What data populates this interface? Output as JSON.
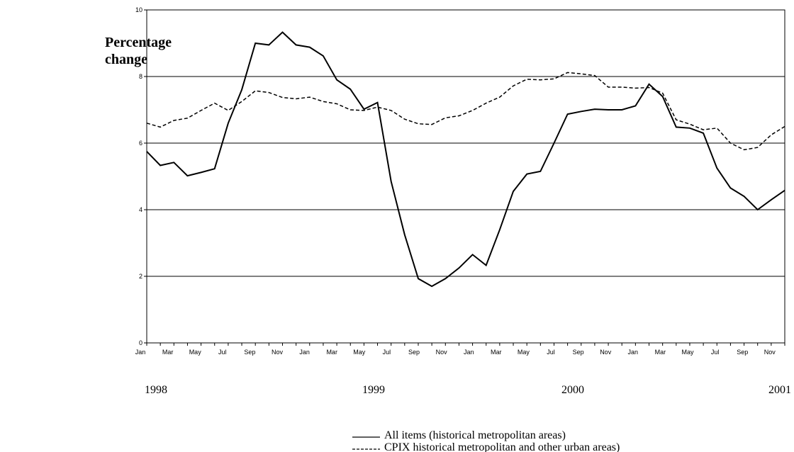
{
  "chart_data": {
    "type": "line",
    "y_label": "Percentage change",
    "categories": [
      "Jan",
      null,
      "Mar",
      null,
      "May",
      null,
      "Jul",
      null,
      "Sep",
      null,
      "Nov",
      null,
      "Jan",
      null,
      "Mar",
      null,
      "May",
      null,
      "Jul",
      null,
      "Sep",
      null,
      "Nov",
      null,
      "Jan",
      null,
      "Mar",
      null,
      "May",
      null,
      "Jul",
      null,
      "Sep",
      null,
      "Nov",
      null,
      "Jan",
      null,
      "Mar",
      null,
      "May",
      null,
      "Jul",
      null,
      "Sep",
      null,
      "Nov",
      null
    ],
    "year_labels": [
      "1998",
      "1999",
      "2000",
      "2001"
    ],
    "series": [
      {
        "name": "All items (historical metropolitan  areas)",
        "color": "#000000",
        "line_style": "solid",
        "values": [
          5.75,
          5.33,
          5.42,
          5.02,
          5.12,
          5.23,
          6.6,
          7.6,
          9.0,
          8.95,
          9.33,
          8.95,
          8.88,
          8.62,
          7.9,
          7.62,
          7.02,
          7.22,
          4.85,
          3.25,
          1.93,
          1.7,
          1.93,
          2.25,
          2.65,
          2.33,
          3.4,
          4.55,
          5.07,
          5.15,
          6.0,
          6.87,
          6.95,
          7.02,
          7.0,
          7.0,
          7.12,
          7.77,
          7.4,
          6.48,
          6.45,
          6.3,
          5.25,
          4.65,
          4.4,
          4.0,
          4.3,
          4.58
        ]
      },
      {
        "name": "CPIX  historical metropolitan and other urban areas)",
        "color": "#000000",
        "line_style": "dashed",
        "values": [
          6.6,
          6.48,
          6.68,
          6.75,
          6.98,
          7.2,
          6.98,
          7.25,
          7.57,
          7.52,
          7.37,
          7.33,
          7.38,
          7.25,
          7.18,
          7.0,
          6.98,
          7.08,
          6.98,
          6.72,
          6.58,
          6.56,
          6.76,
          6.82,
          6.98,
          7.2,
          7.38,
          7.72,
          7.92,
          7.9,
          7.93,
          8.12,
          8.08,
          8.03,
          7.68,
          7.68,
          7.65,
          7.67,
          7.5,
          6.7,
          6.57,
          6.4,
          6.45,
          6.0,
          5.8,
          5.87,
          6.25,
          6.5
        ]
      }
    ],
    "ylim": [
      0,
      10
    ],
    "yticks": [
      0,
      2,
      4,
      6,
      8,
      10
    ],
    "grid": true
  }
}
